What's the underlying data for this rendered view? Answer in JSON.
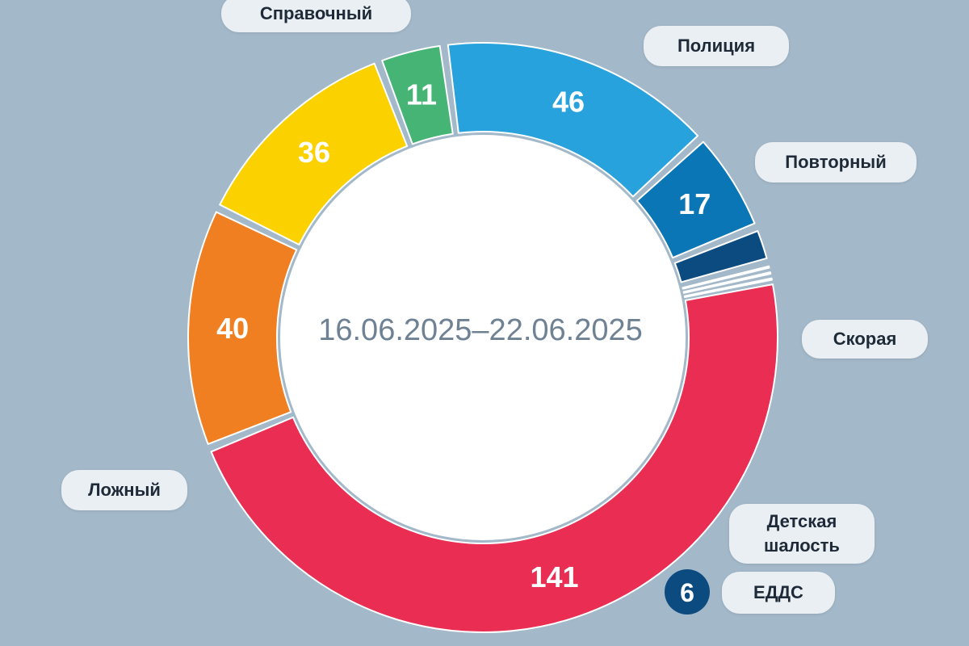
{
  "chart_data": {
    "type": "donut",
    "center_label": "16.06.2025–22.06.2025",
    "slices": [
      {
        "name": "Справочный",
        "value": 40,
        "label": "40",
        "color": "#f07f22"
      },
      {
        "name": "Полиция",
        "value": 36,
        "label": "36",
        "color": "#fbd200"
      },
      {
        "name": "Повторный",
        "value": 11,
        "label": "11",
        "color": "#46b474"
      },
      {
        "name": "Скорая",
        "value": 46,
        "label": "46",
        "color": "#27a2dc"
      },
      {
        "name": "Детская шалость",
        "value": 17,
        "label": "17",
        "color": "#0b76b6"
      },
      {
        "name": "ЕДДС",
        "value": 6,
        "label": "6",
        "color": "#0b4b80"
      },
      {
        "name": "",
        "value": 1,
        "label": "",
        "color": "#5b77be"
      },
      {
        "name": "",
        "value": 1,
        "label": "",
        "color": "#2f2fd6"
      },
      {
        "name": "",
        "value": 1,
        "label": "",
        "color": "#e62ad0"
      },
      {
        "name": "Ложный",
        "value": 141,
        "label": "141",
        "color": "#ea2d52"
      }
    ]
  },
  "legend": {
    "spravochny": "Справочный",
    "policiya": "Полиция",
    "povtorny": "Повторный",
    "skoraya": "Скорая",
    "detskaya": "Детская\nшалость",
    "edds": "ЕДДС",
    "edds_value": "6",
    "lozhny": "Ложный"
  }
}
